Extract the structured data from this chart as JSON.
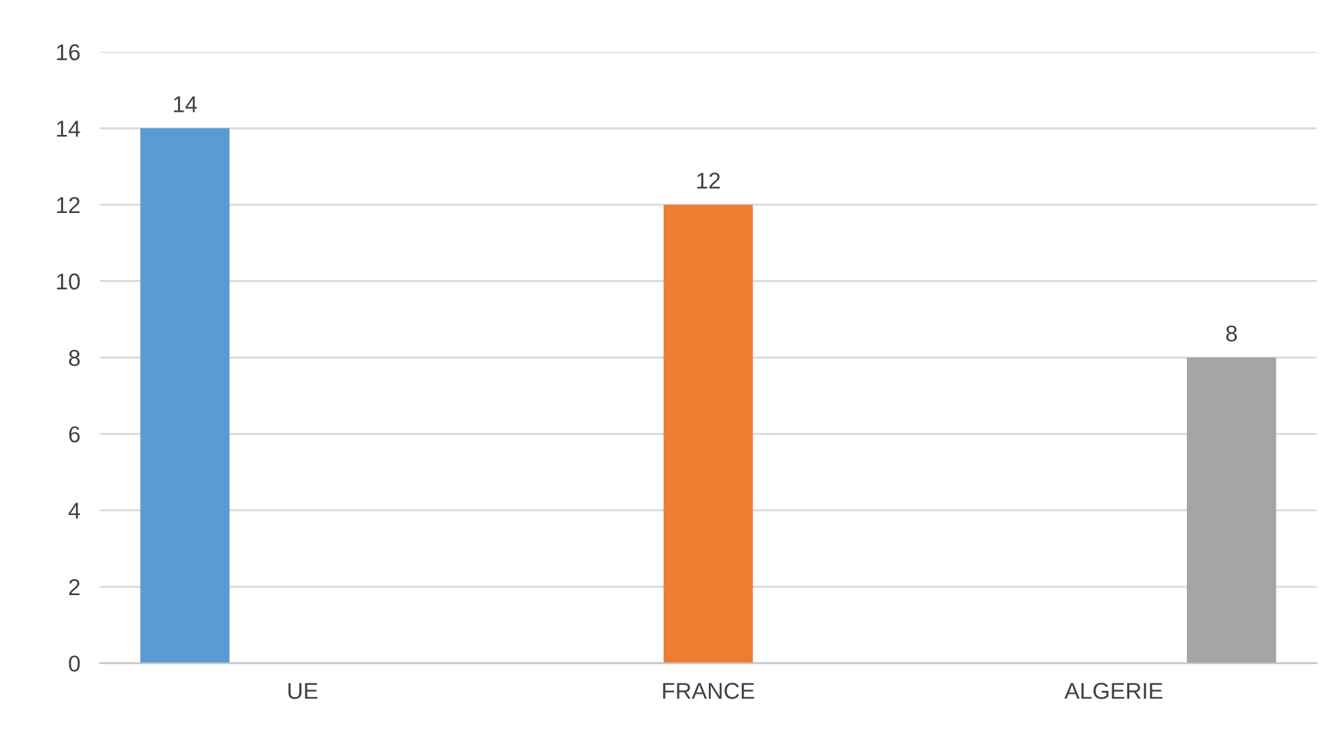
{
  "chart_data": {
    "type": "bar",
    "categories": [
      "UE",
      "FRANCE",
      "ALGERIE"
    ],
    "series": [
      {
        "color": "#5b9bd5",
        "values": [
          14,
          null,
          null
        ]
      },
      {
        "color": "#ed7d31",
        "values": [
          null,
          12,
          null
        ]
      },
      {
        "color": "#a5a5a5",
        "values": [
          null,
          null,
          8
        ]
      }
    ],
    "ylim": [
      0,
      16
    ],
    "yticks": [
      0,
      2,
      4,
      6,
      8,
      10,
      12,
      14,
      16
    ],
    "grid": "y",
    "data_labels": true
  }
}
